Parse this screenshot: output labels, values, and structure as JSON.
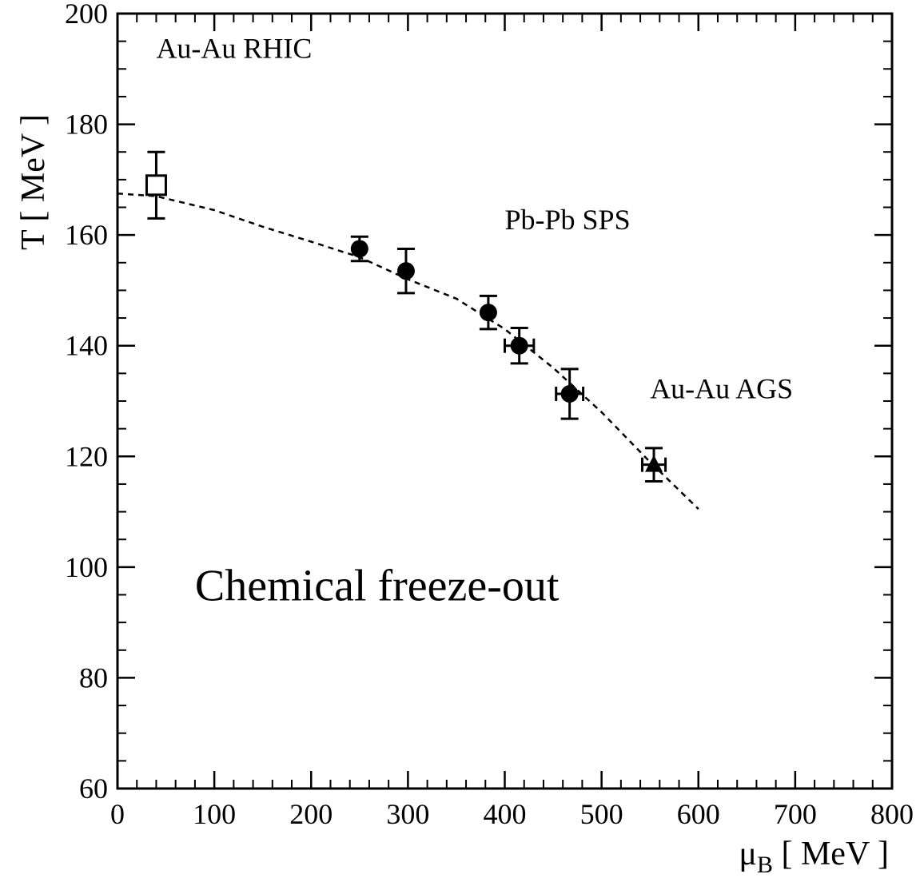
{
  "chart_data": {
    "type": "scatter",
    "xlabel": "μB [ MeV ]",
    "xlabel_main": "μ",
    "xlabel_sub": "B",
    "xlabel_unit": " [ MeV ]",
    "ylabel": "T [ MeV ]",
    "xlim": [
      0,
      800
    ],
    "ylim": [
      60,
      200
    ],
    "xticks": [
      0,
      100,
      200,
      300,
      400,
      500,
      600,
      700,
      800
    ],
    "yticks": [
      60,
      80,
      100,
      120,
      140,
      160,
      180,
      200
    ],
    "grid": false,
    "series": [
      {
        "marker": "open-square",
        "points": [
          {
            "x": 40,
            "y": 169,
            "yerr": 6,
            "xerr": 0
          }
        ]
      },
      {
        "marker": "filled-circle",
        "points": [
          {
            "x": 250,
            "y": 157.5,
            "yerr": 2.2,
            "xerr": 0
          },
          {
            "x": 298,
            "y": 153.5,
            "yerr": 4,
            "xerr": 0
          },
          {
            "x": 383,
            "y": 146,
            "yerr": 3,
            "xerr": 0
          },
          {
            "x": 415,
            "y": 140,
            "yerr": 3.2,
            "xerr": 15
          },
          {
            "x": 467,
            "y": 131.3,
            "yerr": 4.5,
            "xerr": 14
          }
        ]
      },
      {
        "marker": "filled-triangle",
        "points": [
          {
            "x": 554,
            "y": 118.5,
            "yerr": 3,
            "xerr": 12
          }
        ]
      }
    ],
    "curve": {
      "style": "dashed",
      "points": [
        [
          0,
          167.5
        ],
        [
          40,
          167
        ],
        [
          100,
          164.5
        ],
        [
          150,
          161.5
        ],
        [
          200,
          158.8
        ],
        [
          250,
          156
        ],
        [
          300,
          152
        ],
        [
          350,
          148.5
        ],
        [
          400,
          143
        ],
        [
          450,
          136
        ],
        [
          500,
          128
        ],
        [
          550,
          119
        ],
        [
          600,
          110.5
        ]
      ]
    },
    "annotations": [
      {
        "text": "Au-Au RHIC",
        "x": 40,
        "y": 192,
        "size": "small"
      },
      {
        "text": "Pb-Pb SPS",
        "x": 400,
        "y": 161,
        "size": "small"
      },
      {
        "text": "Au-Au AGS",
        "x": 550,
        "y": 130.5,
        "size": "small"
      },
      {
        "text": "Chemical freeze-out",
        "x": 80,
        "y": 94,
        "size": "big"
      }
    ]
  }
}
